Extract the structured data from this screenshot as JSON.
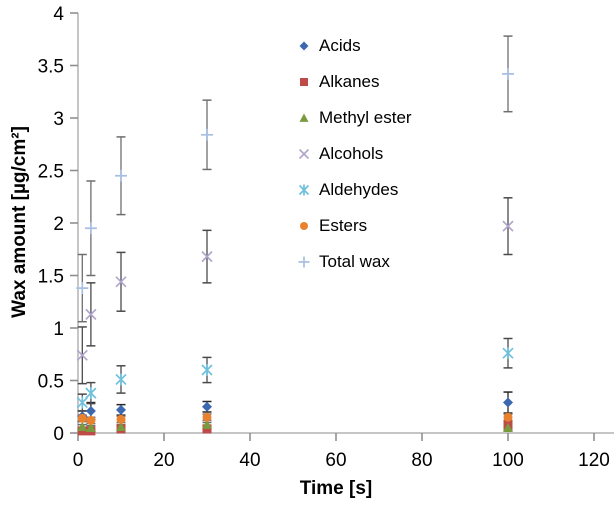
{
  "figure": {
    "background": "#ffffff",
    "text_color": "#000000",
    "axis_line_color": "#c6c6c6",
    "tick_color": "#8f8f8f",
    "error_bar_color": "#6e6e6e"
  },
  "chart_data": {
    "type": "scatter",
    "title": "",
    "xlabel": "Time [s]",
    "ylabel": "Wax amount [µg/cm²]",
    "xlim": [
      0,
      120
    ],
    "ylim": [
      0,
      4
    ],
    "x_ticks": [
      0,
      20,
      40,
      60,
      80,
      100,
      120
    ],
    "y_ticks": [
      0,
      0.5,
      1,
      1.5,
      2,
      2.5,
      3,
      3.5,
      4
    ],
    "grid": false,
    "legend_position": "upper-right-inside",
    "x": [
      1,
      3,
      10,
      30,
      100
    ],
    "series": [
      {
        "name": "Acids",
        "marker": "diamond",
        "color": "#3C68B0",
        "error_color": "#262626",
        "values": [
          0.16,
          0.21,
          0.22,
          0.25,
          0.29
        ],
        "errors": [
          0.05,
          0.08,
          0.05,
          0.05,
          0.1
        ]
      },
      {
        "name": "Alkanes",
        "marker": "square",
        "color": "#BE4B48",
        "error_color": "#6e6e6e",
        "values": [
          0.02,
          0.02,
          0.04,
          0.04,
          0.08
        ],
        "errors": [
          0.01,
          0.01,
          0.01,
          0.01,
          0.02
        ]
      },
      {
        "name": "Methyl ester",
        "marker": "triangle",
        "color": "#7A9A3E",
        "error_color": "#6e6e6e",
        "values": [
          0.06,
          0.05,
          0.06,
          0.08,
          0.05
        ],
        "errors": [
          0.02,
          0.02,
          0.02,
          0.02,
          0.02
        ]
      },
      {
        "name": "Alcohols",
        "marker": "xmark",
        "color": "#B2A6CD",
        "error_color": "#4a4a4a",
        "values": [
          0.74,
          1.13,
          1.44,
          1.68,
          1.97
        ],
        "errors": [
          0.27,
          0.3,
          0.28,
          0.25,
          0.27
        ]
      },
      {
        "name": "Aldehydes",
        "marker": "star",
        "color": "#6EC0DD",
        "error_color": "#4a4a4a",
        "values": [
          0.29,
          0.38,
          0.51,
          0.6,
          0.76
        ],
        "errors": [
          0.08,
          0.1,
          0.13,
          0.12,
          0.14
        ]
      },
      {
        "name": "Esters",
        "marker": "circle",
        "color": "#E9822E",
        "error_color": "#6e6e6e",
        "values": [
          0.14,
          0.12,
          0.13,
          0.15,
          0.15
        ],
        "errors": [
          0.03,
          0.03,
          0.03,
          0.03,
          0.03
        ]
      },
      {
        "name": "Total wax",
        "marker": "plus",
        "color": "#A8BEE2",
        "error_color": "#6e6e6e",
        "values": [
          1.38,
          1.95,
          2.45,
          2.84,
          3.42
        ],
        "errors": [
          0.32,
          0.45,
          0.37,
          0.33,
          0.36
        ]
      }
    ]
  }
}
